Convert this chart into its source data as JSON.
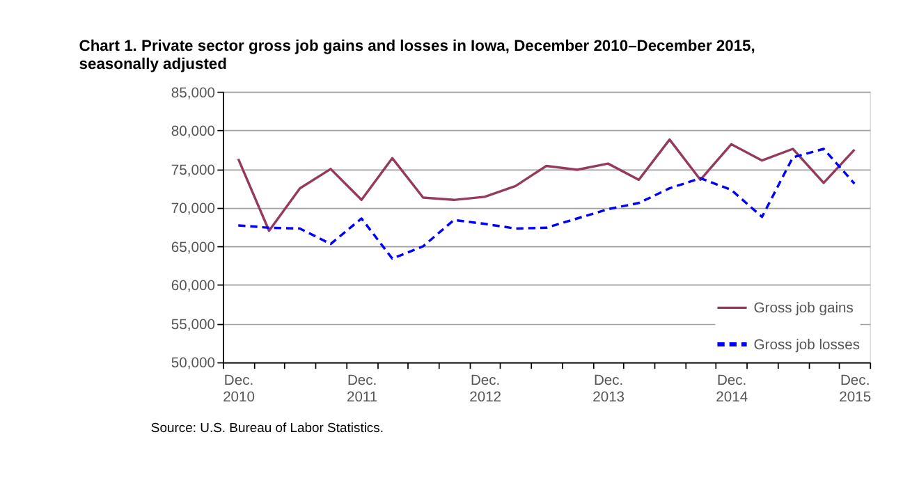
{
  "chart_data": {
    "type": "line",
    "title": "Chart 1. Private sector gross  job gains and losses  in Iowa, December 2010–December 2015, seasonally adjusted",
    "categories": [
      "Dec. 2010",
      null,
      null,
      null,
      "Dec. 2011",
      null,
      null,
      null,
      "Dec. 2012",
      null,
      null,
      null,
      "Dec. 2013",
      null,
      null,
      null,
      "Dec. 2014",
      null,
      null,
      null,
      "Dec. 2015"
    ],
    "series": [
      {
        "name": "Gross job gains",
        "color": "#953a5f",
        "line_style": "solid",
        "values": [
          76300,
          67000,
          72500,
          75000,
          71000,
          76400,
          71300,
          71000,
          71400,
          72800,
          75400,
          74900,
          75700,
          73600,
          78800,
          73600,
          78200,
          76100,
          77600,
          73200,
          77500
        ]
      },
      {
        "name": "Gross job losses",
        "color": "#0000ff",
        "line_style": "dashed",
        "values": [
          67700,
          67400,
          67300,
          65300,
          68600,
          63400,
          65000,
          68400,
          67900,
          67300,
          67400,
          68600,
          69800,
          70600,
          72500,
          73800,
          72300,
          68800,
          76500,
          77600,
          73100
        ]
      }
    ],
    "ylim": [
      50000,
      85000
    ],
    "yticks": [
      {
        "value": 50000,
        "label": "50,000"
      },
      {
        "value": 55000,
        "label": "55,000"
      },
      {
        "value": 60000,
        "label": "60,000"
      },
      {
        "value": 65000,
        "label": "65,000"
      },
      {
        "value": 70000,
        "label": "70,000"
      },
      {
        "value": 75000,
        "label": "75,000"
      },
      {
        "value": 80000,
        "label": "80,000"
      },
      {
        "value": 85000,
        "label": "85,000"
      }
    ],
    "grid": "y",
    "legend": "bottom right",
    "marker": "none",
    "annotations": [
      "Source: U.S. Bureau of Labor Statistics."
    ]
  }
}
